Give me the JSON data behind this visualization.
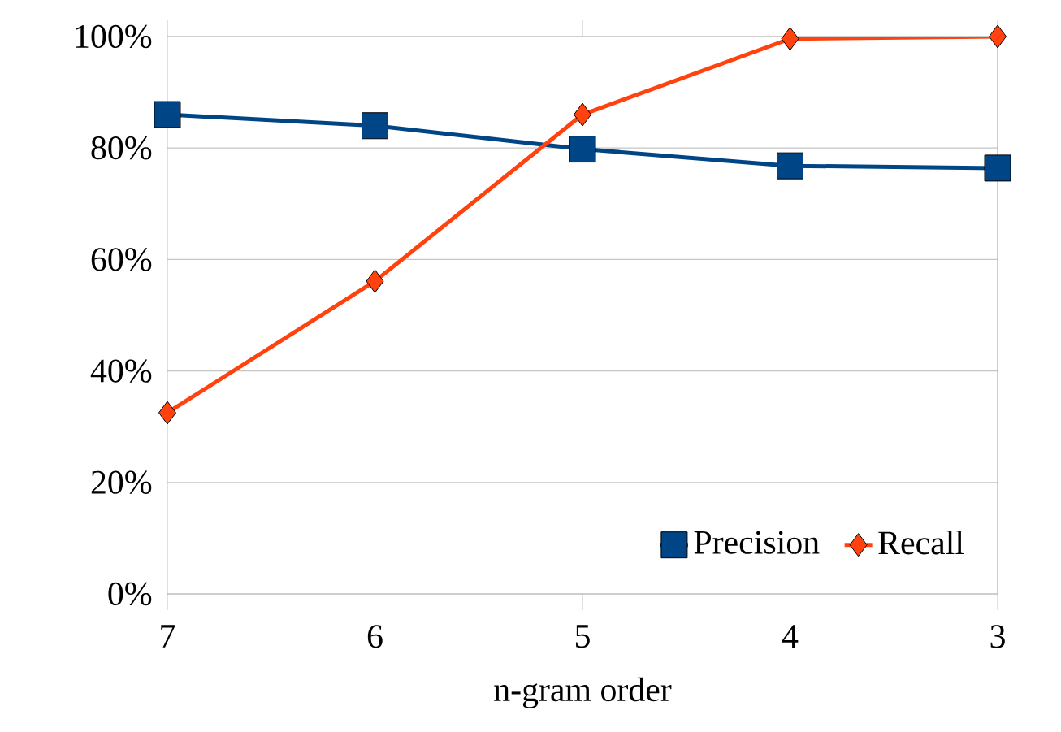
{
  "chart_data": {
    "type": "line",
    "xlabel": "n-gram order",
    "categories": [
      "7",
      "6",
      "5",
      "4",
      "3"
    ],
    "series": [
      {
        "name": "Precision",
        "color": "#004586",
        "marker": "square",
        "values": [
          86,
          84,
          79.8,
          76.8,
          76.4
        ]
      },
      {
        "name": "Recall",
        "color": "#ff420e",
        "marker": "diamond",
        "values": [
          32.5,
          56.1,
          86,
          99.6,
          100
        ]
      }
    ],
    "ylim": [
      0,
      100
    ],
    "yticks": [
      {
        "value": 0,
        "label": "0%"
      },
      {
        "value": 20,
        "label": "20%"
      },
      {
        "value": 40,
        "label": "40%"
      },
      {
        "value": 60,
        "label": "60%"
      },
      {
        "value": 80,
        "label": "80%"
      },
      {
        "value": 100,
        "label": "100%"
      }
    ],
    "grid": "y",
    "legend": "bottom right",
    "line_style": "solid"
  }
}
